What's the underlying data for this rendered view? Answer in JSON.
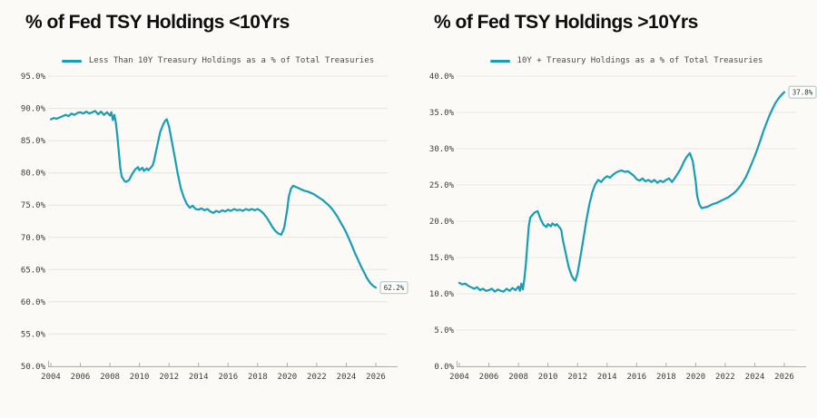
{
  "page": {
    "background": "#fbfaf6",
    "grid_color": "#e8e5df",
    "axis_color": "#b3b0aa"
  },
  "chart_data": [
    {
      "type": "line",
      "title": "% of Fed TSY Holdings <10Yrs",
      "legend": "Less Than 10Y Treasury Holdings as a % of Total Treasuries",
      "line_color": "#179db5",
      "end_label": "62.2%",
      "xlabel": "",
      "ylabel": "",
      "grid": true,
      "legend_position": "top-center",
      "ylim": [
        50,
        95
      ],
      "y_step": 5,
      "xlim": [
        2004,
        2026
      ],
      "x_ticks": [
        2004,
        2006,
        2008,
        2010,
        2012,
        2014,
        2016,
        2018,
        2020,
        2022,
        2024,
        2026
      ],
      "x": [
        2004.0,
        2004.2,
        2004.4,
        2004.6,
        2004.8,
        2005.0,
        2005.2,
        2005.4,
        2005.6,
        2005.8,
        2006.0,
        2006.2,
        2006.4,
        2006.6,
        2006.8,
        2007.0,
        2007.2,
        2007.4,
        2007.6,
        2007.8,
        2008.0,
        2008.1,
        2008.2,
        2008.3,
        2008.4,
        2008.5,
        2008.6,
        2008.7,
        2008.8,
        2009.0,
        2009.1,
        2009.3,
        2009.5,
        2009.7,
        2009.9,
        2010.0,
        2010.2,
        2010.3,
        2010.5,
        2010.6,
        2010.8,
        2010.9,
        2011.0,
        2011.2,
        2011.4,
        2011.6,
        2011.75,
        2011.85,
        2012.0,
        2012.2,
        2012.4,
        2012.6,
        2012.8,
        2013.0,
        2013.2,
        2013.4,
        2013.6,
        2013.8,
        2014.0,
        2014.2,
        2014.4,
        2014.6,
        2014.8,
        2015.0,
        2015.2,
        2015.4,
        2015.6,
        2015.8,
        2016.0,
        2016.2,
        2016.4,
        2016.6,
        2016.8,
        2017.0,
        2017.2,
        2017.4,
        2017.6,
        2017.8,
        2018.0,
        2018.2,
        2018.4,
        2018.6,
        2018.8,
        2019.0,
        2019.2,
        2019.4,
        2019.6,
        2019.8,
        2020.0,
        2020.1,
        2020.25,
        2020.4,
        2020.6,
        2020.8,
        2021.0,
        2021.2,
        2021.4,
        2021.6,
        2021.8,
        2022.0,
        2022.2,
        2022.4,
        2022.6,
        2022.8,
        2023.0,
        2023.2,
        2023.4,
        2023.6,
        2023.8,
        2024.0,
        2024.2,
        2024.4,
        2024.6,
        2024.8,
        2025.0,
        2025.2,
        2025.4,
        2025.6,
        2025.8,
        2026.0
      ],
      "y": [
        88.3,
        88.5,
        88.4,
        88.6,
        88.8,
        89.0,
        88.8,
        89.2,
        89.0,
        89.3,
        89.4,
        89.2,
        89.5,
        89.2,
        89.4,
        89.6,
        89.1,
        89.5,
        89.0,
        89.4,
        88.9,
        89.4,
        88.2,
        89.0,
        87.8,
        85.8,
        83.2,
        80.8,
        79.4,
        78.7,
        78.6,
        78.9,
        79.8,
        80.5,
        80.9,
        80.4,
        80.8,
        80.3,
        80.7,
        80.4,
        80.9,
        81.2,
        82.0,
        84.2,
        86.3,
        87.5,
        88.1,
        88.3,
        87.2,
        84.8,
        82.3,
        79.8,
        77.6,
        76.2,
        75.2,
        74.6,
        74.9,
        74.4,
        74.3,
        74.5,
        74.2,
        74.4,
        74.0,
        73.8,
        74.1,
        73.9,
        74.2,
        74.0,
        74.3,
        74.1,
        74.4,
        74.2,
        74.3,
        74.1,
        74.4,
        74.2,
        74.4,
        74.2,
        74.4,
        74.1,
        73.7,
        73.1,
        72.4,
        71.6,
        71.0,
        70.6,
        70.4,
        71.5,
        74.3,
        76.2,
        77.5,
        78.0,
        77.8,
        77.6,
        77.4,
        77.2,
        77.1,
        76.9,
        76.7,
        76.4,
        76.1,
        75.8,
        75.4,
        75.0,
        74.5,
        73.9,
        73.2,
        72.4,
        71.6,
        70.7,
        69.7,
        68.6,
        67.5,
        66.5,
        65.5,
        64.6,
        63.7,
        63.0,
        62.5,
        62.2
      ]
    },
    {
      "type": "line",
      "title": "% of Fed TSY Holdings >10Yrs",
      "legend": "10Y + Treasury Holdings as a % of Total Treasuries",
      "line_color": "#179db5",
      "end_label": "37.8%",
      "xlabel": "",
      "ylabel": "",
      "grid": true,
      "legend_position": "top-center",
      "ylim": [
        0,
        40
      ],
      "y_step": 5,
      "xlim": [
        2004,
        2026
      ],
      "x_ticks": [
        2004,
        2006,
        2008,
        2010,
        2012,
        2014,
        2016,
        2018,
        2020,
        2022,
        2024,
        2026
      ],
      "x": [
        2004.0,
        2004.2,
        2004.4,
        2004.6,
        2004.8,
        2005.0,
        2005.2,
        2005.4,
        2005.6,
        2005.8,
        2006.0,
        2006.2,
        2006.4,
        2006.6,
        2006.8,
        2007.0,
        2007.2,
        2007.4,
        2007.6,
        2007.8,
        2008.0,
        2008.1,
        2008.2,
        2008.3,
        2008.4,
        2008.5,
        2008.6,
        2008.7,
        2008.8,
        2009.0,
        2009.1,
        2009.3,
        2009.5,
        2009.7,
        2009.9,
        2010.0,
        2010.2,
        2010.3,
        2010.5,
        2010.6,
        2010.8,
        2010.9,
        2011.0,
        2011.2,
        2011.4,
        2011.6,
        2011.75,
        2011.85,
        2012.0,
        2012.2,
        2012.4,
        2012.6,
        2012.8,
        2013.0,
        2013.2,
        2013.4,
        2013.6,
        2013.8,
        2014.0,
        2014.2,
        2014.4,
        2014.6,
        2014.8,
        2015.0,
        2015.2,
        2015.4,
        2015.6,
        2015.8,
        2016.0,
        2016.2,
        2016.4,
        2016.6,
        2016.8,
        2017.0,
        2017.2,
        2017.4,
        2017.6,
        2017.8,
        2018.0,
        2018.2,
        2018.4,
        2018.6,
        2018.8,
        2019.0,
        2019.2,
        2019.4,
        2019.6,
        2019.8,
        2020.0,
        2020.1,
        2020.25,
        2020.4,
        2020.6,
        2020.8,
        2021.0,
        2021.2,
        2021.4,
        2021.6,
        2021.8,
        2022.0,
        2022.2,
        2022.4,
        2022.6,
        2022.8,
        2023.0,
        2023.2,
        2023.4,
        2023.6,
        2023.8,
        2024.0,
        2024.2,
        2024.4,
        2024.6,
        2024.8,
        2025.0,
        2025.2,
        2025.4,
        2025.6,
        2025.8,
        2026.0
      ],
      "y": [
        11.5,
        11.3,
        11.4,
        11.1,
        10.9,
        10.7,
        10.9,
        10.5,
        10.7,
        10.4,
        10.5,
        10.7,
        10.3,
        10.6,
        10.4,
        10.3,
        10.7,
        10.4,
        10.8,
        10.5,
        11.0,
        10.4,
        11.4,
        10.6,
        12.0,
        14.0,
        16.8,
        19.3,
        20.5,
        21.0,
        21.2,
        21.4,
        20.3,
        19.5,
        19.2,
        19.6,
        19.3,
        19.7,
        19.4,
        19.6,
        19.1,
        18.8,
        17.5,
        15.6,
        13.7,
        12.5,
        12.0,
        11.8,
        12.8,
        15.1,
        17.6,
        20.1,
        22.3,
        24.0,
        25.1,
        25.7,
        25.4,
        25.9,
        26.2,
        26.0,
        26.4,
        26.7,
        26.9,
        27.0,
        26.8,
        26.9,
        26.6,
        26.3,
        25.8,
        25.6,
        25.9,
        25.5,
        25.7,
        25.4,
        25.7,
        25.3,
        25.6,
        25.4,
        25.7,
        25.9,
        25.4,
        26.0,
        26.6,
        27.3,
        28.2,
        28.9,
        29.4,
        28.3,
        25.5,
        23.5,
        22.3,
        21.8,
        21.9,
        22.0,
        22.2,
        22.4,
        22.5,
        22.7,
        22.9,
        23.1,
        23.3,
        23.6,
        23.9,
        24.3,
        24.8,
        25.4,
        26.1,
        27.0,
        28.0,
        29.0,
        30.1,
        31.3,
        32.5,
        33.6,
        34.6,
        35.5,
        36.3,
        36.9,
        37.4,
        37.8
      ]
    }
  ]
}
